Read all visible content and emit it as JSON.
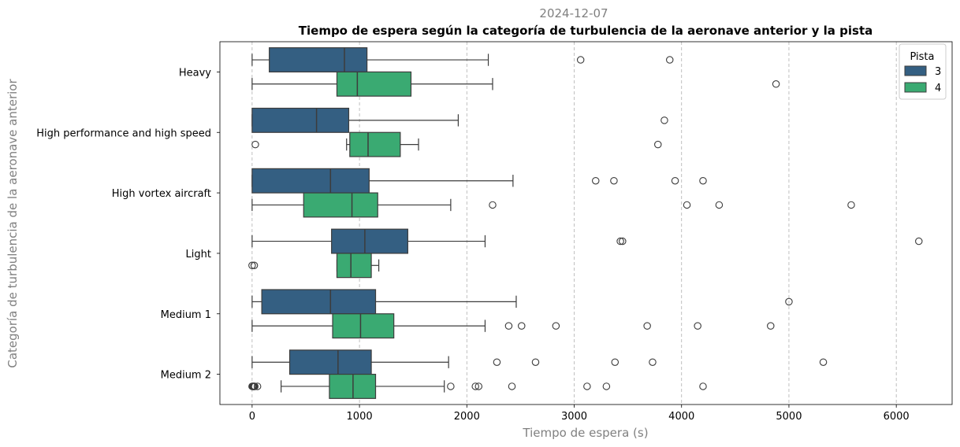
{
  "date_label": "2024-12-07",
  "chart_data": {
    "type": "boxplot",
    "orientation": "horizontal",
    "title": "Tiempo de espera según la categoría de turbulencia de la aeronave anterior y la pista",
    "xlabel": "Tiempo de espera (s)",
    "ylabel": "Categoría de turbulencia de la aeronave anterior",
    "xlim": [
      -300,
      6520
    ],
    "xticks": [
      0,
      1000,
      2000,
      3000,
      4000,
      5000,
      6000
    ],
    "grid": "x-dashed",
    "categories": [
      "Heavy",
      "High performance and high speed",
      "High vortex aircraft",
      "Light",
      "Medium 1",
      "Medium 2"
    ],
    "legend": {
      "title": "Pista",
      "placement": "top-right"
    },
    "series": [
      {
        "name": "3",
        "color": "#345f82",
        "boxes": [
          {
            "whislo": 0,
            "q1": 160,
            "med": 860,
            "q3": 1070,
            "whishi": 2200,
            "fliers": [
              3060,
              3890
            ]
          },
          {
            "whislo": 0,
            "q1": 0,
            "med": 600,
            "q3": 900,
            "whishi": 1920,
            "fliers": [
              3840
            ]
          },
          {
            "whislo": 0,
            "q1": 0,
            "med": 730,
            "q3": 1090,
            "whishi": 2430,
            "fliers": [
              3200,
              3370,
              3940,
              4200
            ]
          },
          {
            "whislo": 0,
            "q1": 740,
            "med": 1050,
            "q3": 1450,
            "whishi": 2170,
            "fliers": [
              3430,
              3450,
              6210
            ]
          },
          {
            "whislo": 0,
            "q1": 90,
            "med": 730,
            "q3": 1150,
            "whishi": 2460,
            "fliers": [
              5000
            ]
          },
          {
            "whislo": 0,
            "q1": 350,
            "med": 800,
            "q3": 1110,
            "whishi": 1830,
            "fliers": [
              2280,
              2640,
              3380,
              3730,
              5320
            ]
          }
        ]
      },
      {
        "name": "4",
        "color": "#3aaa72",
        "boxes": [
          {
            "whislo": 0,
            "q1": 790,
            "med": 980,
            "q3": 1480,
            "whishi": 2240,
            "fliers": [
              4880
            ]
          },
          {
            "whislo": 880,
            "q1": 910,
            "med": 1080,
            "q3": 1380,
            "whishi": 1550,
            "fliers": [
              30,
              3780
            ]
          },
          {
            "whislo": 0,
            "q1": 480,
            "med": 930,
            "q3": 1170,
            "whishi": 1850,
            "fliers": [
              2240,
              4050,
              4350,
              5580
            ]
          },
          {
            "whislo": 790,
            "q1": 790,
            "med": 920,
            "q3": 1110,
            "whishi": 1180,
            "fliers": [
              0,
              20
            ]
          },
          {
            "whislo": 0,
            "q1": 750,
            "med": 1010,
            "q3": 1320,
            "whishi": 2170,
            "fliers": [
              2390,
              2510,
              2830,
              3680,
              4150,
              4830
            ]
          },
          {
            "whislo": 270,
            "q1": 720,
            "med": 940,
            "q3": 1150,
            "whishi": 1790,
            "fliers": [
              0,
              5,
              10,
              15,
              20,
              25,
              50,
              1850,
              2080,
              2110,
              2420,
              3120,
              3300,
              4200
            ]
          }
        ]
      }
    ]
  }
}
